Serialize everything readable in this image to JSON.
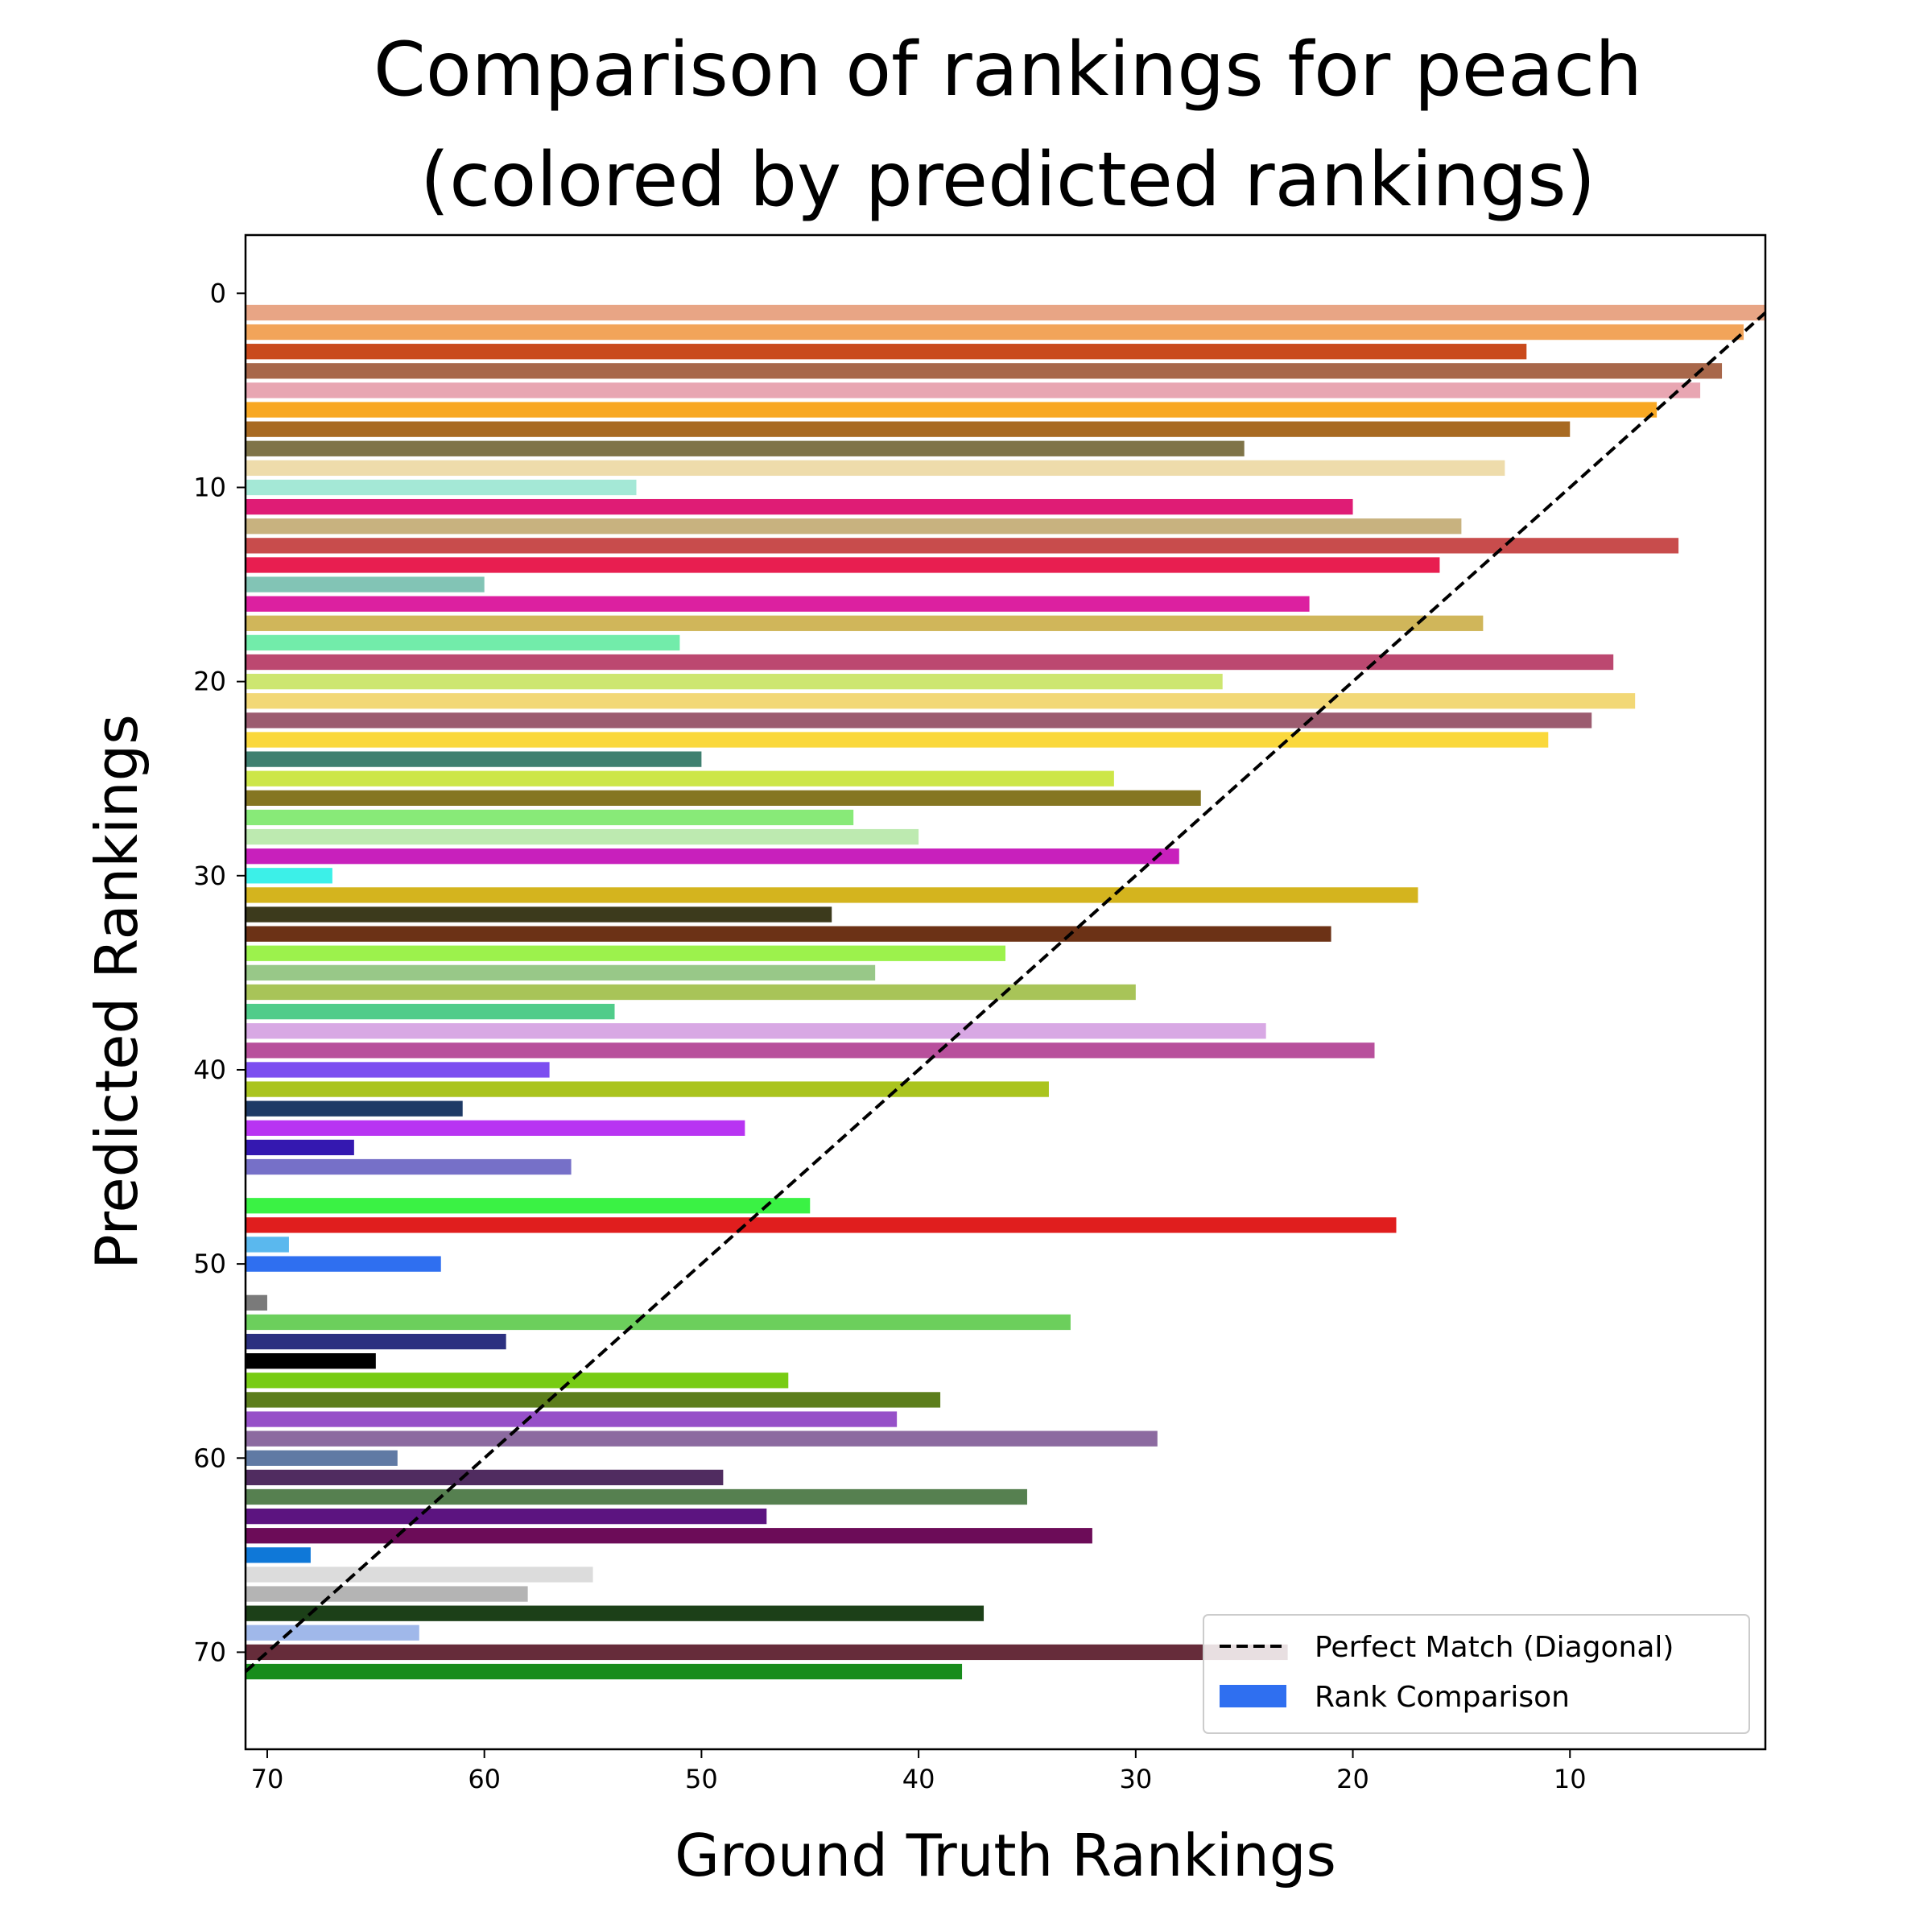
{
  "chart_data": {
    "type": "bar",
    "orientation": "horizontal",
    "title_lines": [
      "Comparison of rankings for peach",
      "(colored by predicted rankings)"
    ],
    "xlabel": "Ground Truth Rankings",
    "ylabel": "Predicted Rankings",
    "xlim": [
      71,
      1
    ],
    "ylim": [
      75,
      -3
    ],
    "xticks": [
      70,
      60,
      50,
      40,
      30,
      20,
      10
    ],
    "yticks": [
      0,
      10,
      20,
      30,
      40,
      50,
      60,
      70
    ],
    "grid": false,
    "legend_position": "lower-right",
    "legend": [
      {
        "label": "Perfect Match (Diagonal)",
        "kind": "dashed-line",
        "color": "#000000"
      },
      {
        "label": "Rank Comparison",
        "kind": "patch",
        "color": "#2f6ff0"
      }
    ],
    "diagonal": {
      "from": [
        71,
        71
      ],
      "to": [
        1,
        1
      ]
    },
    "bars": [
      {
        "y": 1,
        "x": 1,
        "color": "#e8a585"
      },
      {
        "y": 2,
        "x": 2,
        "color": "#f2a45a"
      },
      {
        "y": 3,
        "x": 12,
        "color": "#c94a1c"
      },
      {
        "y": 4,
        "x": 3,
        "color": "#a8674a"
      },
      {
        "y": 5,
        "x": 4,
        "color": "#e8a6b2"
      },
      {
        "y": 6,
        "x": 6,
        "color": "#f8a823"
      },
      {
        "y": 7,
        "x": 10,
        "color": "#a86a22"
      },
      {
        "y": 8,
        "x": 25,
        "color": "#7f7448"
      },
      {
        "y": 9,
        "x": 13,
        "color": "#eedcab"
      },
      {
        "y": 10,
        "x": 53,
        "color": "#a4e8d6"
      },
      {
        "y": 11,
        "x": 20,
        "color": "#df1c75"
      },
      {
        "y": 12,
        "x": 15,
        "color": "#c8b27f"
      },
      {
        "y": 13,
        "x": 5,
        "color": "#c84c4c"
      },
      {
        "y": 14,
        "x": 16,
        "color": "#e81e50"
      },
      {
        "y": 15,
        "x": 60,
        "color": "#82c4b5"
      },
      {
        "y": 16,
        "x": 22,
        "color": "#dc20a0"
      },
      {
        "y": 17,
        "x": 14,
        "color": "#d0b65a"
      },
      {
        "y": 18,
        "x": 51,
        "color": "#72ecaa"
      },
      {
        "y": 19,
        "x": 8,
        "color": "#bc4870"
      },
      {
        "y": 20,
        "x": 26,
        "color": "#cde670"
      },
      {
        "y": 21,
        "x": 7,
        "color": "#f2d876"
      },
      {
        "y": 22,
        "x": 9,
        "color": "#9c5c70"
      },
      {
        "y": 23,
        "x": 11,
        "color": "#fad83c"
      },
      {
        "y": 24,
        "x": 50,
        "color": "#3f8070"
      },
      {
        "y": 25,
        "x": 31,
        "color": "#cde648"
      },
      {
        "y": 26,
        "x": 27,
        "color": "#857622"
      },
      {
        "y": 27,
        "x": 43,
        "color": "#88ea78"
      },
      {
        "y": 28,
        "x": 40,
        "color": "#bdeab0"
      },
      {
        "y": 29,
        "x": 28,
        "color": "#c820bc"
      },
      {
        "y": 30,
        "x": 67,
        "color": "#3cf0e8"
      },
      {
        "y": 31,
        "x": 17,
        "color": "#d4b41e"
      },
      {
        "y": 32,
        "x": 44,
        "color": "#3c3a1c"
      },
      {
        "y": 33,
        "x": 21,
        "color": "#6c3216"
      },
      {
        "y": 34,
        "x": 36,
        "color": "#9cf24c"
      },
      {
        "y": 35,
        "x": 42,
        "color": "#98c888"
      },
      {
        "y": 36,
        "x": 30,
        "color": "#a8c458"
      },
      {
        "y": 37,
        "x": 54,
        "color": "#50cc8a"
      },
      {
        "y": 38,
        "x": 24,
        "color": "#d8a8e4"
      },
      {
        "y": 39,
        "x": 19,
        "color": "#b8509c"
      },
      {
        "y": 40,
        "x": 57,
        "color": "#7c4ef0"
      },
      {
        "y": 41,
        "x": 34,
        "color": "#aac41e"
      },
      {
        "y": 42,
        "x": 61,
        "color": "#1e3a66"
      },
      {
        "y": 43,
        "x": 48,
        "color": "#b834f2"
      },
      {
        "y": 44,
        "x": 66,
        "color": "#3418b0"
      },
      {
        "y": 45,
        "x": 56,
        "color": "#7670c8"
      },
      {
        "y": 47,
        "x": 45,
        "color": "#3af244"
      },
      {
        "y": 48,
        "x": 18,
        "color": "#e01e1e"
      },
      {
        "y": 49,
        "x": 69,
        "color": "#5ab8ee"
      },
      {
        "y": 50,
        "x": 62,
        "color": "#2f6ff0"
      },
      {
        "y": 52,
        "x": 70,
        "color": "#7a7a7a"
      },
      {
        "y": 53,
        "x": 33,
        "color": "#6ccf5c"
      },
      {
        "y": 54,
        "x": 59,
        "color": "#2c3080"
      },
      {
        "y": 55,
        "x": 65,
        "color": "#000000"
      },
      {
        "y": 56,
        "x": 46,
        "color": "#78cc14"
      },
      {
        "y": 57,
        "x": 39,
        "color": "#5c7e1c"
      },
      {
        "y": 58,
        "x": 41,
        "color": "#9650c8"
      },
      {
        "y": 59,
        "x": 29,
        "color": "#8c6aa0"
      },
      {
        "y": 60,
        "x": 64,
        "color": "#607aa4"
      },
      {
        "y": 61,
        "x": 49,
        "color": "#502c60"
      },
      {
        "y": 62,
        "x": 35,
        "color": "#568050"
      },
      {
        "y": 63,
        "x": 47,
        "color": "#5c1480"
      },
      {
        "y": 64,
        "x": 32,
        "color": "#6c0c58"
      },
      {
        "y": 65,
        "x": 68,
        "color": "#0f78d8"
      },
      {
        "y": 66,
        "x": 55,
        "color": "#dcdcdc"
      },
      {
        "y": 67,
        "x": 58,
        "color": "#b4b4b4"
      },
      {
        "y": 68,
        "x": 37,
        "color": "#1c4018"
      },
      {
        "y": 69,
        "x": 63,
        "color": "#a0b8ea"
      },
      {
        "y": 70,
        "x": 23,
        "color": "#662c3a"
      },
      {
        "y": 71,
        "x": 38,
        "color": "#188c1c"
      }
    ]
  }
}
